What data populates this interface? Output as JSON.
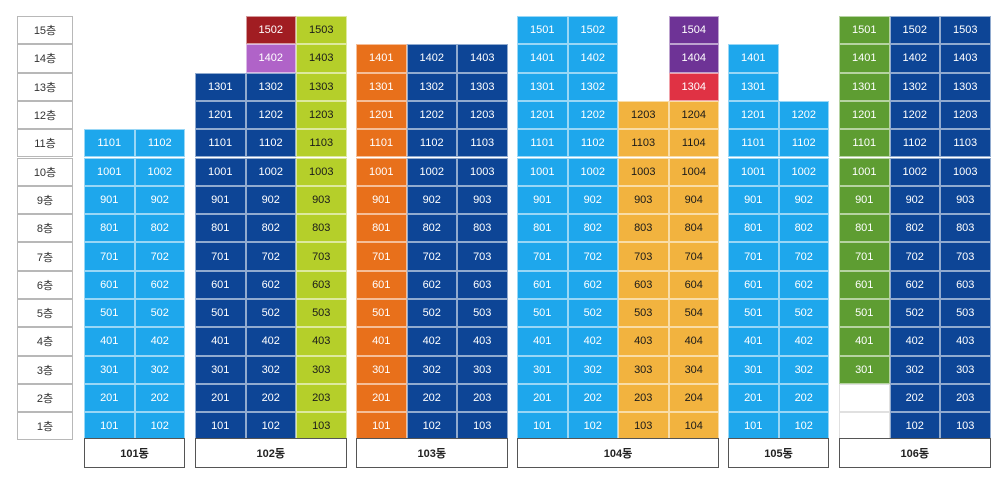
{
  "colors": {
    "lightblue": "#1ea7ec",
    "navy": "#0d4596",
    "lime": "#b5cf2a",
    "orange": "#e8701b",
    "gold": "#f2b33f",
    "maroon": "#a11d22",
    "pink": "#b063c8",
    "purple": "#6e3396",
    "red": "#e03244",
    "green": "#5e9d32"
  },
  "floors": [
    "15층",
    "14층",
    "13층",
    "12층",
    "11층",
    "10층",
    "9층",
    "8층",
    "7층",
    "6층",
    "5층",
    "4층",
    "3층",
    "2층",
    "1층"
  ],
  "buildings": [
    {
      "name": "101동",
      "columns": [
        {
          "line": "01",
          "default_color": "lightblue",
          "overrides": {},
          "blank": []
        },
        {
          "line": "02",
          "default_color": "lightblue",
          "overrides": {},
          "blank": []
        }
      ],
      "max_floor": 11
    },
    {
      "name": "102동",
      "columns": [
        {
          "line": "01",
          "default_color": "navy",
          "overrides": {},
          "blank": [],
          "max_floor": 13
        },
        {
          "line": "02",
          "default_color": "navy",
          "overrides": {
            "15": "maroon",
            "14": "pink"
          },
          "blank": [],
          "max_floor": 15
        },
        {
          "line": "03",
          "default_color": "lime",
          "overrides": {},
          "blank": [],
          "max_floor": 15
        }
      ]
    },
    {
      "name": "103동",
      "columns": [
        {
          "line": "01",
          "default_color": "orange",
          "overrides": {},
          "blank": [],
          "max_floor": 14
        },
        {
          "line": "02",
          "default_color": "navy",
          "overrides": {},
          "blank": [],
          "max_floor": 14
        },
        {
          "line": "03",
          "default_color": "navy",
          "overrides": {},
          "blank": [],
          "max_floor": 14
        }
      ]
    },
    {
      "name": "104동",
      "columns": [
        {
          "line": "01",
          "default_color": "lightblue",
          "overrides": {},
          "blank": [],
          "max_floor": 15
        },
        {
          "line": "02",
          "default_color": "lightblue",
          "overrides": {},
          "blank": [],
          "max_floor": 15
        },
        {
          "line": "03",
          "default_color": "gold",
          "overrides": {},
          "blank": [],
          "max_floor": 12
        },
        {
          "line": "04",
          "default_color": "gold",
          "overrides": {
            "15": "purple",
            "14": "purple",
            "13": "red"
          },
          "blank": [],
          "max_floor": 15
        }
      ]
    },
    {
      "name": "105동",
      "columns": [
        {
          "line": "01",
          "default_color": "lightblue",
          "overrides": {},
          "blank": [],
          "max_floor": 14
        },
        {
          "line": "02",
          "default_color": "lightblue",
          "overrides": {},
          "blank": [],
          "max_floor": 12
        }
      ]
    },
    {
      "name": "106동",
      "columns": [
        {
          "line": "01",
          "default_color": "green",
          "overrides": {},
          "blank": [
            "2",
            "1"
          ],
          "max_floor": 15
        },
        {
          "line": "02",
          "default_color": "navy",
          "overrides": {},
          "blank": [],
          "max_floor": 15
        },
        {
          "line": "03",
          "default_color": "navy",
          "overrides": {},
          "blank": [],
          "max_floor": 15
        }
      ]
    }
  ]
}
